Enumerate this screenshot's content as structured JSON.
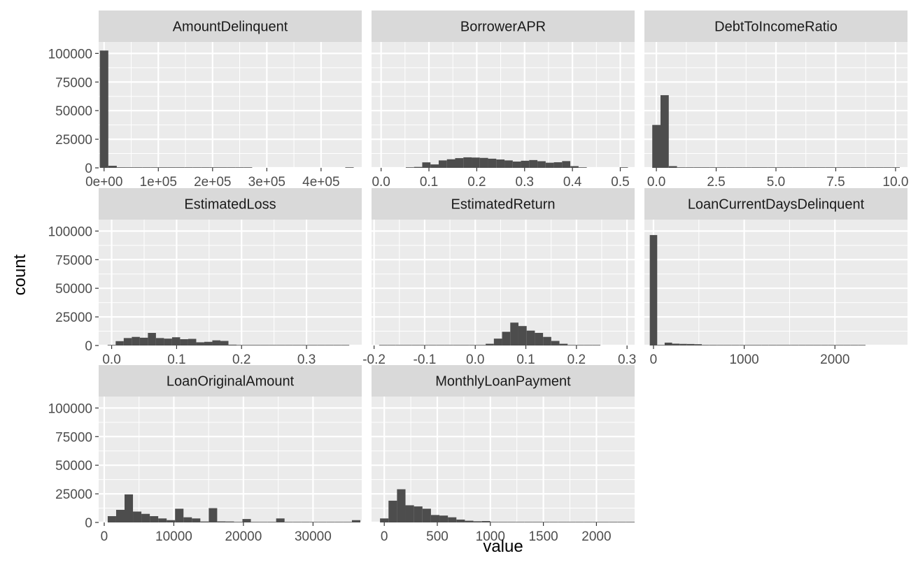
{
  "chart_data": {
    "type": "bar",
    "xlabel": "value",
    "ylabel": "count",
    "ylim": [
      0,
      110000
    ],
    "y_ticks": [
      0,
      25000,
      50000,
      75000,
      100000
    ],
    "y_tick_labels": [
      "0",
      "25000",
      "50000",
      "75000",
      "100000"
    ],
    "grid": true,
    "colors": {
      "panel_bg": "#ebebeb",
      "strip_bg": "#d9d9d9",
      "bar": "#4d4d4d",
      "grid": "#ffffff"
    },
    "facets": [
      {
        "name": "AmountDelinquent",
        "xlim": [
          -10000,
          475000
        ],
        "x_ticks": [
          0,
          100000,
          200000,
          300000,
          400000
        ],
        "x_tick_labels": [
          "0e+00",
          "1e+05",
          "2e+05",
          "3e+05",
          "4e+05"
        ],
        "bin_start": -7800,
        "bin_width": 15600,
        "counts": [
          102500,
          1800,
          500,
          150,
          80,
          50,
          30,
          20,
          10,
          8,
          5,
          4,
          3,
          2,
          2,
          1,
          1,
          1,
          0,
          0,
          0,
          0,
          0,
          0,
          0,
          0,
          0,
          0,
          0,
          1
        ]
      },
      {
        "name": "BorrowerAPR",
        "xlim": [
          -0.02,
          0.53
        ],
        "x_ticks": [
          0.0,
          0.1,
          0.2,
          0.3,
          0.4,
          0.5
        ],
        "x_tick_labels": [
          "0.0",
          "0.1",
          "0.2",
          "0.3",
          "0.4",
          "0.5"
        ],
        "bin_start": 0.0,
        "bin_width": 0.0172,
        "counts": [
          0,
          0,
          0,
          100,
          800,
          4800,
          3000,
          6500,
          7500,
          8500,
          9200,
          9000,
          8700,
          8000,
          7300,
          6500,
          5500,
          6200,
          6800,
          5800,
          4500,
          4900,
          5900,
          1500,
          100,
          0,
          0,
          0,
          0,
          10
        ]
      },
      {
        "name": "DebtToIncomeRatio",
        "xlim": [
          -0.5,
          10.5
        ],
        "x_ticks": [
          0.0,
          2.5,
          5.0,
          7.5,
          10.0
        ],
        "x_tick_labels": [
          "0.0",
          "2.5",
          "5.0",
          "7.5",
          "10.0"
        ],
        "bin_start": -0.172,
        "bin_width": 0.345,
        "counts": [
          37500,
          63500,
          1500,
          300,
          100,
          50,
          30,
          20,
          10,
          10,
          5,
          5,
          5,
          3,
          3,
          2,
          2,
          2,
          2,
          1,
          1,
          1,
          1,
          1,
          1,
          1,
          1,
          1,
          1,
          300
        ]
      },
      {
        "name": "EstimatedLoss",
        "xlim": [
          -0.02,
          0.385
        ],
        "x_ticks": [
          0.0,
          0.1,
          0.2,
          0.3
        ],
        "x_tick_labels": [
          "0.0",
          "0.1",
          "0.2",
          "0.3"
        ],
        "bin_start": -0.0062,
        "bin_width": 0.0124,
        "counts": [
          300,
          3800,
          6500,
          7500,
          6800,
          11000,
          6500,
          6000,
          7200,
          5500,
          5800,
          2800,
          3200,
          4500,
          4000,
          700,
          300,
          250,
          200,
          150,
          100,
          80,
          50,
          30,
          20,
          10,
          5,
          5,
          5,
          10
        ]
      },
      {
        "name": "EstimatedReturn",
        "xlim": [
          -0.205,
          0.315
        ],
        "x_ticks": [
          -0.2,
          -0.1,
          0.0,
          0.1,
          0.2,
          0.3
        ],
        "x_tick_labels": [
          "-0.2",
          "-0.1",
          "0.0",
          "0.1",
          "0.2",
          "0.3"
        ],
        "bin_start": -0.19,
        "bin_width": 0.0162,
        "counts": [
          5,
          5,
          5,
          5,
          5,
          5,
          10,
          10,
          20,
          30,
          50,
          100,
          300,
          1500,
          6000,
          12000,
          20000,
          17000,
          13000,
          11000,
          7500,
          4000,
          1500,
          300,
          50,
          10,
          5,
          0,
          0,
          0
        ]
      },
      {
        "name": "LoanCurrentDaysDelinquent",
        "xlim": [
          -100,
          2800
        ],
        "x_ticks": [
          0,
          1000,
          2000
        ],
        "x_tick_labels": [
          "0",
          "1000",
          "2000"
        ],
        "bin_start": -41,
        "bin_width": 82,
        "counts": [
          96500,
          300,
          2500,
          1600,
          1400,
          1300,
          1100,
          500,
          500,
          450,
          400,
          380,
          350,
          330,
          320,
          300,
          300,
          280,
          270,
          260,
          250,
          240,
          230,
          220,
          210,
          200,
          200,
          190,
          180,
          0
        ]
      },
      {
        "name": "LoanOriginalAmount",
        "xlim": [
          -800,
          37000
        ],
        "x_ticks": [
          0,
          10000,
          20000,
          30000
        ],
        "x_tick_labels": [
          "0",
          "10000",
          "20000",
          "30000"
        ],
        "bin_start": 500,
        "bin_width": 1210,
        "counts": [
          5500,
          11000,
          24500,
          9500,
          7500,
          5500,
          3500,
          2000,
          12000,
          4500,
          3500,
          800,
          12500,
          900,
          800,
          500,
          3000,
          200,
          200,
          500,
          3500,
          100,
          100,
          100,
          50,
          50,
          50,
          50,
          50,
          2000
        ]
      },
      {
        "name": "MonthlyLoanPayment",
        "xlim": [
          -120,
          2360
        ],
        "x_ticks": [
          0,
          500,
          1000,
          1500,
          2000
        ],
        "x_tick_labels": [
          "0",
          "500",
          "1000",
          "1500",
          "2000"
        ],
        "bin_start": -40,
        "bin_width": 80,
        "counts": [
          3500,
          19000,
          29000,
          15000,
          14000,
          12000,
          6500,
          6000,
          4500,
          2500,
          1500,
          1000,
          1200,
          400,
          300,
          200,
          150,
          100,
          80,
          60,
          50,
          40,
          30,
          20,
          15,
          10,
          10,
          5,
          5,
          5
        ]
      }
    ]
  }
}
